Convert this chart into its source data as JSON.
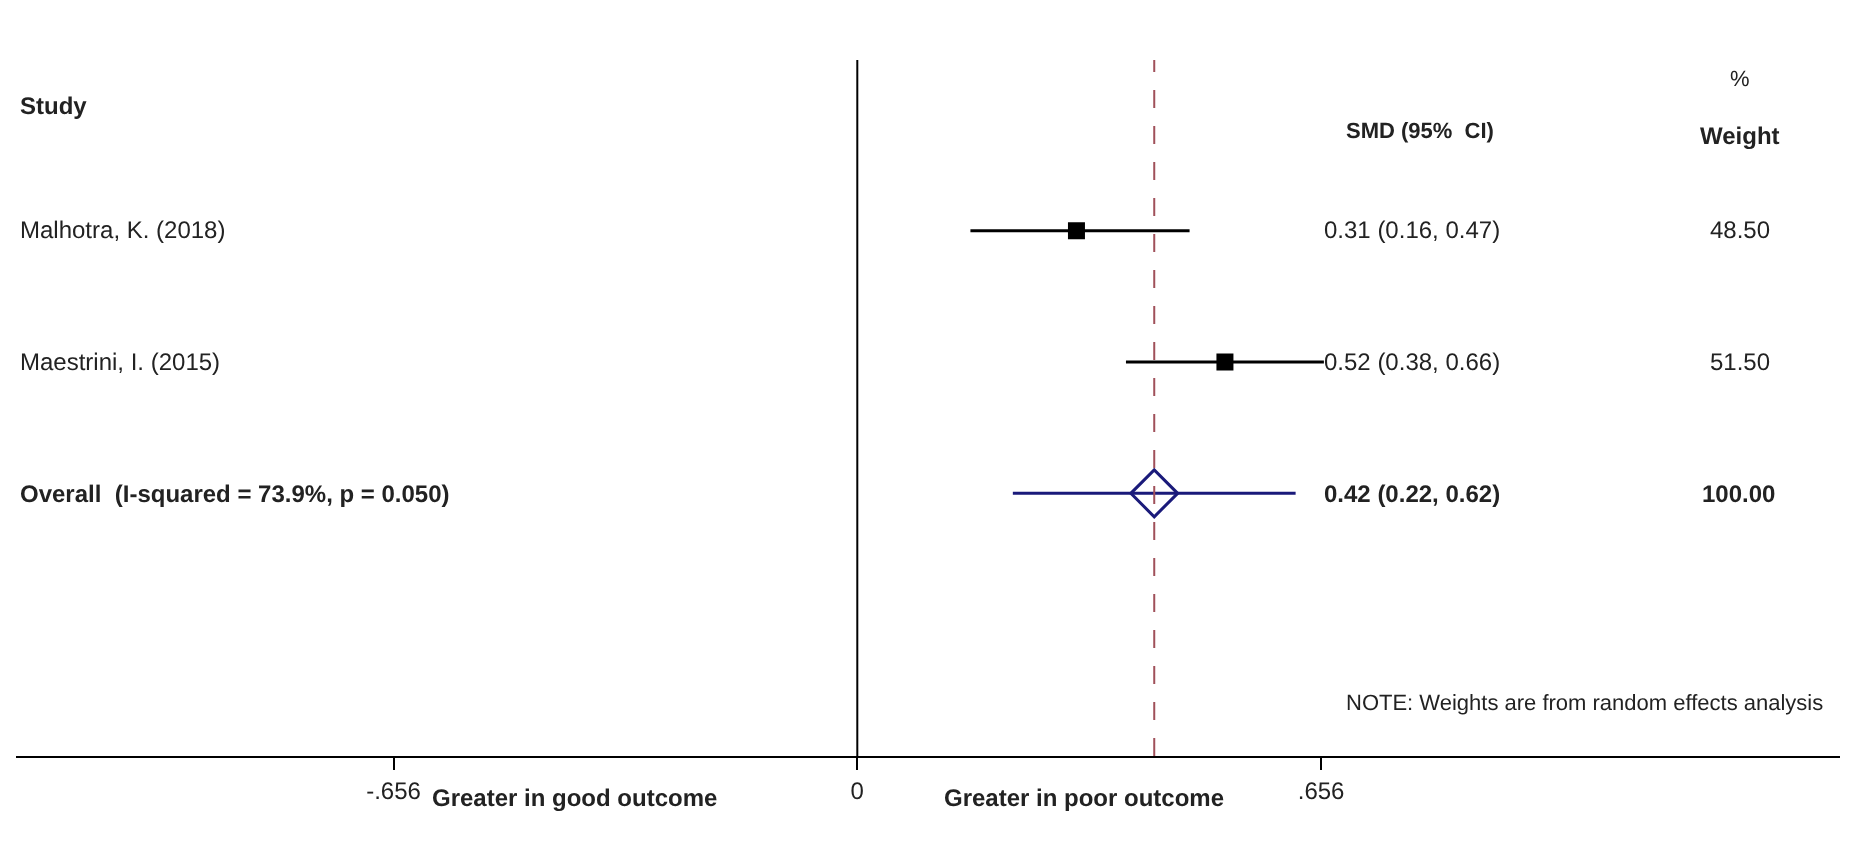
{
  "chart_data": {
    "type": "scatter",
    "orientation": "horizontal",
    "categories": [
      "Malhotra, K. (2018)",
      "Maestrini, I. (2015)",
      "Overall  (I-squared = 73.9%, p = 0.050)"
    ],
    "series": [
      {
        "color": "#000000",
        "marker": "square",
        "values": [
          0.31,
          0.52,
          null
        ],
        "errors": [
          [
            0.16,
            0.47
          ],
          [
            0.38,
            0.66
          ],
          null
        ]
      },
      {
        "color": "#1a1a7a",
        "marker": "diamond",
        "values": [
          null,
          null,
          0.42
        ],
        "errors": [
          null,
          null,
          [
            0.22,
            0.62
          ]
        ]
      }
    ],
    "xlim": [
      -1.19,
      1.39
    ],
    "xticks": [
      {
        "value": -0.656,
        "label": "-.656"
      },
      0,
      {
        "value": 0.656,
        "label": ".656"
      }
    ],
    "ref_lines": [
      {
        "axis": "x",
        "value": 0,
        "color": "#000000",
        "line_style": "solid"
      },
      {
        "axis": "x",
        "value": 0.42,
        "color": "#a0505a",
        "line_style": "dashed"
      }
    ],
    "annotations": [
      "Study",
      "SMD (95%  CI)",
      "%",
      "Weight",
      "0.31 (0.16, 0.47)",
      "0.52 (0.38, 0.66)",
      "0.42 (0.22, 0.62)",
      "48.50",
      "51.50",
      "100.00",
      "NOTE: Weights are from random effects analysis",
      "Greater in good outcome",
      "Greater in poor outcome"
    ],
    "grid": false,
    "legend": false
  }
}
